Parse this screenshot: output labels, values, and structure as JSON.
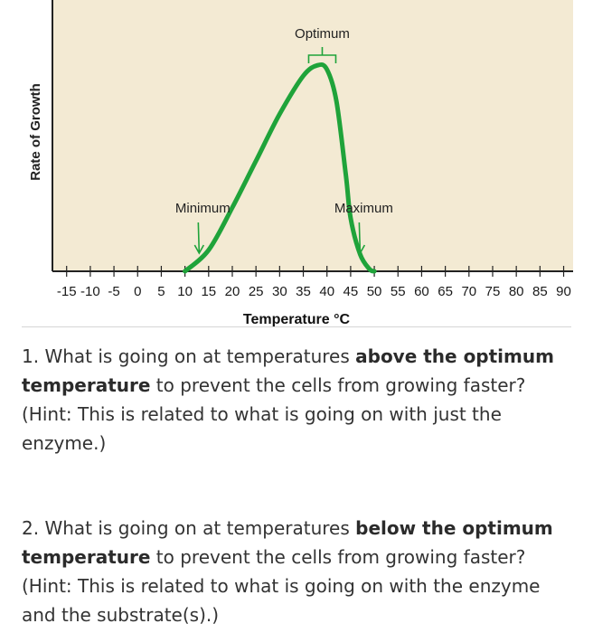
{
  "chart_data": {
    "type": "line",
    "xlabel": "Temperature °C",
    "ylabel": "Rate of Growth",
    "xlim": [
      -18,
      92
    ],
    "ylim": [
      0,
      100
    ],
    "tick_labels": [
      "-15",
      "-10",
      "-5",
      "0",
      "5",
      "10",
      "15",
      "20",
      "25",
      "30",
      "35",
      "40",
      "45",
      "50",
      "55",
      "60",
      "65",
      "70",
      "75",
      "80",
      "85",
      "90"
    ],
    "series": [
      {
        "color": "#1fa33a",
        "x": [
          10,
          15,
          20,
          25,
          30,
          35,
          38,
          40,
          42,
          44,
          45,
          47,
          49,
          50
        ],
        "y": [
          0,
          10,
          30,
          52,
          74,
          92,
          97,
          95,
          80,
          45,
          25,
          8,
          1,
          0
        ]
      }
    ],
    "annotations": [
      {
        "label": "Optimum",
        "x": 39,
        "type": "bracket"
      },
      {
        "label": "Minimum",
        "x": 13,
        "type": "arrow"
      },
      {
        "label": "Maximum",
        "x": 47,
        "type": "arrow"
      }
    ],
    "grid": false,
    "legend": "none",
    "plot_background": "#f3ead3",
    "axis_color": "#222222"
  },
  "questions": [
    {
      "number": "1.",
      "before": " What is going on at temperatures ",
      "bold": "above the optimum temperature",
      "after": " to prevent the cells from growing faster? (Hint:  This is related to what is going on with just the enzyme.)"
    },
    {
      "number": "2.",
      "before": " What is going on at temperatures ",
      "bold": "below the optimum temperature",
      "after": " to prevent the cells from growing faster? (Hint:  This is related to what is going on with the enzyme and the substrate(s).)"
    }
  ]
}
